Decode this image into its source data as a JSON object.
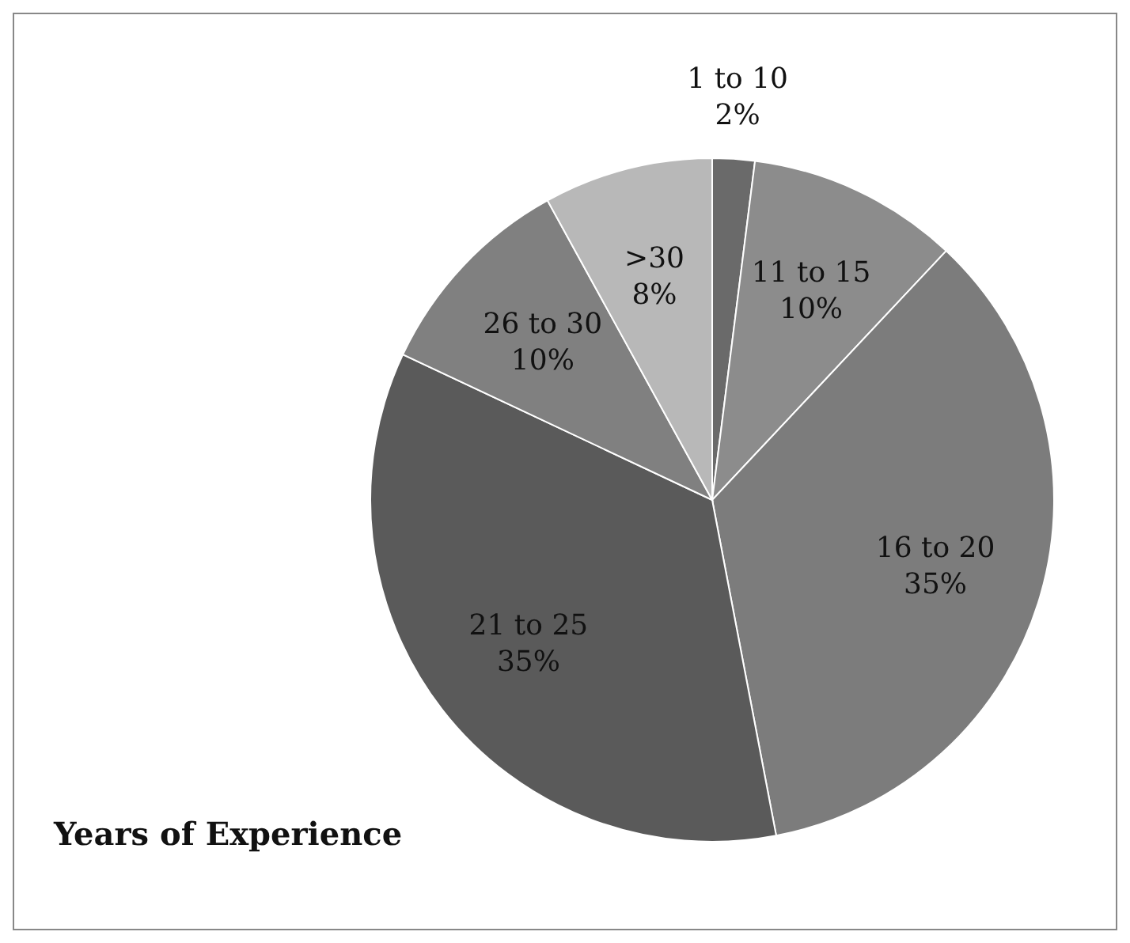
{
  "chart_data": {
    "type": "pie",
    "title": "Years of Experience",
    "categories": [
      "1 to 10",
      "11 to 15",
      "16 to 20",
      "21 to 25",
      "26 to 30",
      ">30"
    ],
    "values": [
      2,
      10,
      35,
      35,
      10,
      8
    ],
    "value_labels": [
      "2%",
      "10%",
      "35%",
      "35%",
      "10%",
      "8%"
    ],
    "colors": [
      "#6a6a6a",
      "#8c8c8c",
      "#7c7c7c",
      "#5a5a5a",
      "#808080",
      "#b8b8b8"
    ],
    "legend": false
  }
}
